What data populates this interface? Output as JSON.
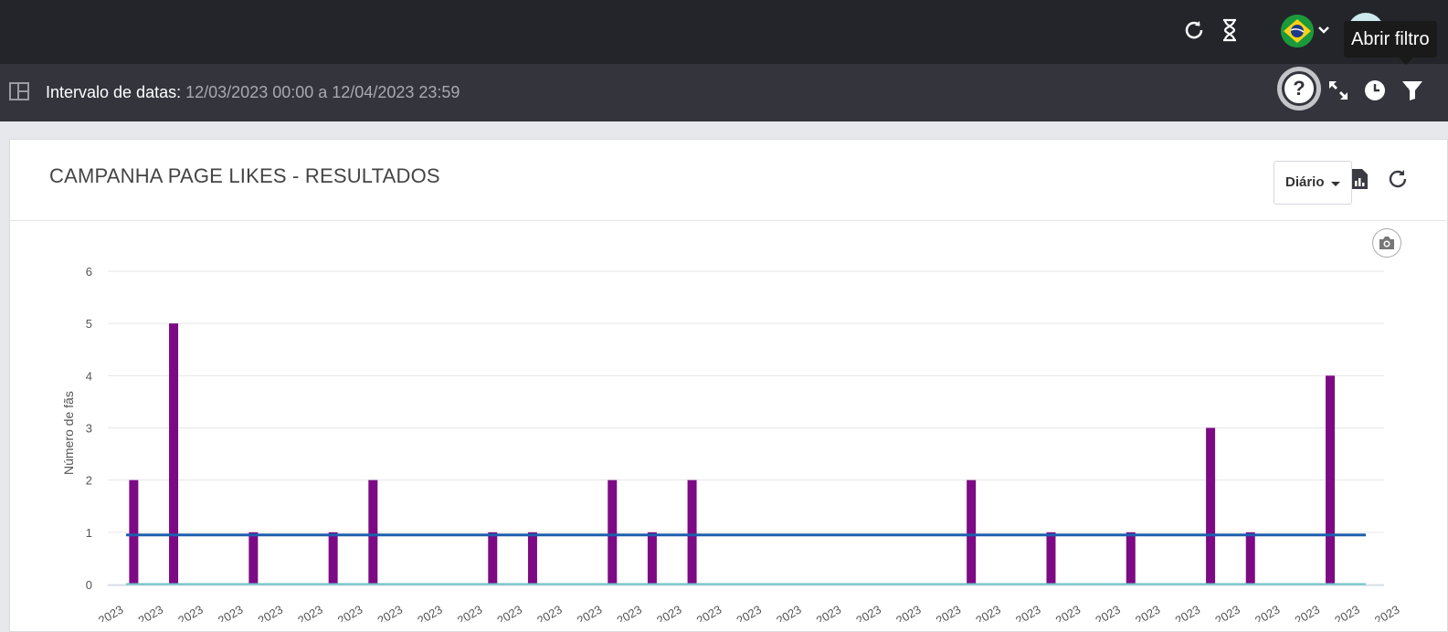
{
  "header": {
    "tooltip": "Abrir filtro",
    "icons": [
      "refresh-icon",
      "hourglass-icon",
      "brazil-flag-icon",
      "chevron-down-icon",
      "avatar"
    ]
  },
  "subheader": {
    "interval_label": "Intervalo de datas",
    "interval_value": "12/03/2023 00:00 a 12/04/2023 23:59",
    "icons": [
      "help-icon",
      "expand-icon",
      "clock-icon",
      "filter-icon"
    ]
  },
  "card": {
    "title": "CAMPANHA PAGE LIKES - RESULTADOS",
    "period_select": "Diário"
  },
  "colors": {
    "bar": "#7d0a85",
    "line_average": "#1f5fae",
    "line_zero": "#6cc6c6"
  },
  "chart_data": {
    "type": "bar",
    "ylabel": "Número de fãs",
    "ylim": [
      0,
      6
    ],
    "yticks": [
      "0",
      "1",
      "2",
      "3",
      "4",
      "5",
      "6"
    ],
    "xtick_label": "2023",
    "x_count": 32,
    "values": [
      2,
      5,
      0,
      1,
      0,
      1,
      2,
      0,
      0,
      1,
      1,
      0,
      2,
      1,
      2,
      0,
      0,
      0,
      0,
      0,
      0,
      2,
      0,
      1,
      0,
      1,
      0,
      3,
      1,
      0,
      4,
      0
    ],
    "average": 0.95,
    "grid": true
  }
}
